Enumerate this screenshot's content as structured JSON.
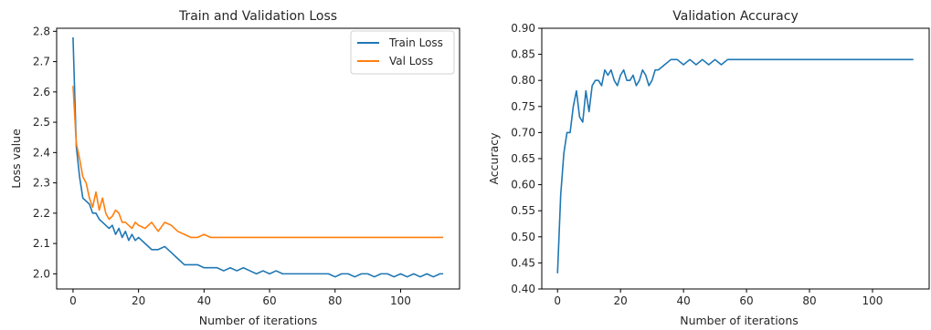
{
  "chart_data": [
    {
      "type": "line",
      "title": "Train and Validation Loss",
      "xlabel": "Number of iterations",
      "ylabel": "Loss value",
      "xlim": [
        -5,
        118
      ],
      "ylim": [
        1.95,
        2.81
      ],
      "xticks": [
        0,
        20,
        40,
        60,
        80,
        100
      ],
      "yticks": [
        2.0,
        2.1,
        2.2,
        2.3,
        2.4,
        2.5,
        2.6,
        2.7,
        2.8
      ],
      "xtick_labels": [
        "0",
        "20",
        "40",
        "60",
        "80",
        "100"
      ],
      "ytick_labels": [
        "2.0",
        "2.1",
        "2.2",
        "2.3",
        "2.4",
        "2.5",
        "2.6",
        "2.7",
        "2.8"
      ],
      "grid": false,
      "legend_position": "top-right",
      "series": [
        {
          "name": "Train Loss",
          "color": "#1f77b4",
          "x": [
            0,
            1,
            2,
            3,
            4,
            5,
            6,
            7,
            8,
            9,
            10,
            11,
            12,
            13,
            14,
            15,
            16,
            17,
            18,
            19,
            20,
            22,
            24,
            26,
            28,
            30,
            32,
            34,
            36,
            38,
            40,
            42,
            44,
            46,
            48,
            50,
            52,
            54,
            56,
            58,
            60,
            62,
            64,
            66,
            68,
            70,
            72,
            74,
            76,
            78,
            80,
            82,
            84,
            86,
            88,
            90,
            92,
            94,
            96,
            98,
            100,
            102,
            104,
            106,
            108,
            110,
            112,
            113
          ],
          "y": [
            2.78,
            2.42,
            2.32,
            2.25,
            2.24,
            2.23,
            2.2,
            2.2,
            2.18,
            2.17,
            2.16,
            2.15,
            2.16,
            2.13,
            2.15,
            2.12,
            2.14,
            2.11,
            2.13,
            2.11,
            2.12,
            2.1,
            2.08,
            2.08,
            2.09,
            2.07,
            2.05,
            2.03,
            2.03,
            2.03,
            2.02,
            2.02,
            2.02,
            2.01,
            2.02,
            2.01,
            2.02,
            2.01,
            2.0,
            2.01,
            2.0,
            2.01,
            2.0,
            2.0,
            2.0,
            2.0,
            2.0,
            2.0,
            2.0,
            2.0,
            1.99,
            2.0,
            2.0,
            1.99,
            2.0,
            2.0,
            1.99,
            2.0,
            2.0,
            1.99,
            2.0,
            1.99,
            2.0,
            1.99,
            2.0,
            1.99,
            2.0,
            2.0
          ]
        },
        {
          "name": "Val Loss",
          "color": "#ff7f0e",
          "x": [
            0,
            1,
            2,
            3,
            4,
            5,
            6,
            7,
            8,
            9,
            10,
            11,
            12,
            13,
            14,
            15,
            16,
            17,
            18,
            19,
            20,
            22,
            24,
            26,
            28,
            30,
            32,
            34,
            36,
            38,
            40,
            42,
            44,
            46,
            48,
            50,
            52,
            54,
            56,
            58,
            60,
            62,
            64,
            66,
            68,
            70,
            72,
            74,
            76,
            78,
            80,
            82,
            84,
            86,
            88,
            90,
            92,
            94,
            96,
            98,
            100,
            102,
            104,
            106,
            108,
            110,
            112,
            113
          ],
          "y": [
            2.62,
            2.43,
            2.38,
            2.32,
            2.3,
            2.25,
            2.22,
            2.27,
            2.21,
            2.25,
            2.2,
            2.18,
            2.19,
            2.21,
            2.2,
            2.17,
            2.17,
            2.16,
            2.15,
            2.17,
            2.16,
            2.15,
            2.17,
            2.14,
            2.17,
            2.16,
            2.14,
            2.13,
            2.12,
            2.12,
            2.13,
            2.12,
            2.12,
            2.12,
            2.12,
            2.12,
            2.12,
            2.12,
            2.12,
            2.12,
            2.12,
            2.12,
            2.12,
            2.12,
            2.12,
            2.12,
            2.12,
            2.12,
            2.12,
            2.12,
            2.12,
            2.12,
            2.12,
            2.12,
            2.12,
            2.12,
            2.12,
            2.12,
            2.12,
            2.12,
            2.12,
            2.12,
            2.12,
            2.12,
            2.12,
            2.12,
            2.12,
            2.12
          ]
        }
      ]
    },
    {
      "type": "line",
      "title": "Validation Accuracy",
      "xlabel": "Number of iterations",
      "ylabel": "Accuracy",
      "xlim": [
        -5,
        118
      ],
      "ylim": [
        0.4,
        0.9
      ],
      "xticks": [
        0,
        20,
        40,
        60,
        80,
        100
      ],
      "yticks": [
        0.4,
        0.45,
        0.5,
        0.55,
        0.6,
        0.65,
        0.7,
        0.75,
        0.8,
        0.85,
        0.9
      ],
      "xtick_labels": [
        "0",
        "20",
        "40",
        "60",
        "80",
        "100"
      ],
      "ytick_labels": [
        "0.40",
        "0.45",
        "0.50",
        "0.55",
        "0.60",
        "0.65",
        "0.70",
        "0.75",
        "0.80",
        "0.85",
        "0.90"
      ],
      "grid": false,
      "series": [
        {
          "color": "#1f77b4",
          "x": [
            0,
            1,
            2,
            3,
            4,
            5,
            6,
            7,
            8,
            9,
            10,
            11,
            12,
            13,
            14,
            15,
            16,
            17,
            18,
            19,
            20,
            21,
            22,
            23,
            24,
            25,
            26,
            27,
            28,
            29,
            30,
            31,
            32,
            34,
            36,
            38,
            40,
            42,
            44,
            46,
            48,
            50,
            52,
            54,
            56,
            58,
            60,
            62,
            64,
            66,
            68,
            70,
            72,
            74,
            76,
            78,
            80,
            82,
            84,
            86,
            88,
            90,
            92,
            94,
            96,
            98,
            100,
            102,
            104,
            106,
            108,
            110,
            112,
            113
          ],
          "y": [
            0.43,
            0.58,
            0.66,
            0.7,
            0.7,
            0.75,
            0.78,
            0.73,
            0.72,
            0.78,
            0.74,
            0.79,
            0.8,
            0.8,
            0.79,
            0.82,
            0.81,
            0.82,
            0.8,
            0.79,
            0.81,
            0.82,
            0.8,
            0.8,
            0.81,
            0.79,
            0.8,
            0.82,
            0.81,
            0.79,
            0.8,
            0.82,
            0.82,
            0.83,
            0.84,
            0.84,
            0.83,
            0.84,
            0.83,
            0.84,
            0.83,
            0.84,
            0.83,
            0.84,
            0.84,
            0.84,
            0.84,
            0.84,
            0.84,
            0.84,
            0.84,
            0.84,
            0.84,
            0.84,
            0.84,
            0.84,
            0.84,
            0.84,
            0.84,
            0.84,
            0.84,
            0.84,
            0.84,
            0.84,
            0.84,
            0.84,
            0.84,
            0.84,
            0.84,
            0.84,
            0.84,
            0.84,
            0.84,
            0.84
          ]
        }
      ]
    }
  ]
}
